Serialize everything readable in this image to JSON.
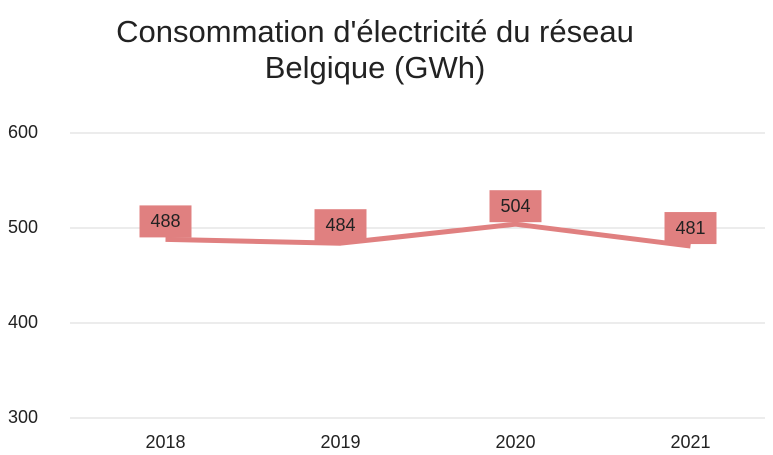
{
  "chart_data": {
    "type": "line",
    "title": "Consommation d'électricité du réseau Belgique (GWh)",
    "categories": [
      "2018",
      "2019",
      "2020",
      "2021"
    ],
    "series": [
      {
        "name": "Consommation",
        "color": "#e08080",
        "values": [
          488,
          484,
          504,
          481
        ]
      }
    ],
    "ylim": [
      300,
      600
    ],
    "yticks": [
      300,
      400,
      500,
      600
    ],
    "grid": true
  }
}
